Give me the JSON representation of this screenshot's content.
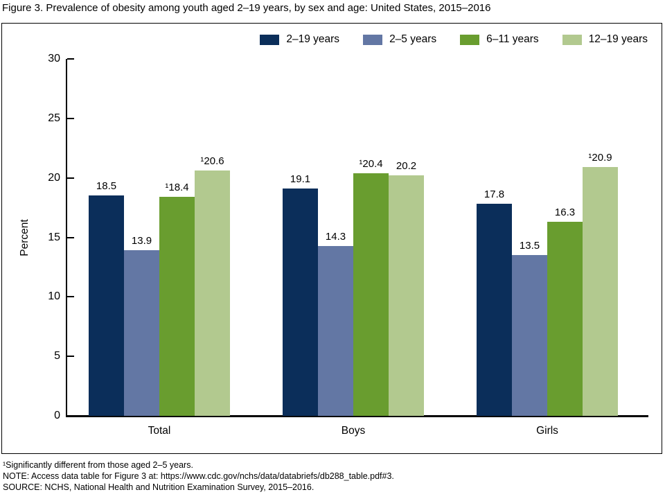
{
  "title": "Figure 3. Prevalence of obesity among youth aged 2–19 years, by sex and age: United States, 2015–2016",
  "chart_data": {
    "type": "bar",
    "title": "Prevalence of obesity among youth aged 2–19 years, by sex and age: United States, 2015–2016",
    "categories": [
      "Total",
      "Boys",
      "Girls"
    ],
    "series": [
      {
        "name": "2–19 years",
        "color": "#0b2e5a",
        "values": [
          18.5,
          19.1,
          17.8
        ],
        "value_labels": [
          "18.5",
          "19.1",
          "17.8"
        ]
      },
      {
        "name": "2–5 years",
        "color": "#6377a4",
        "values": [
          13.9,
          14.3,
          13.5
        ],
        "value_labels": [
          "13.9",
          "14.3",
          "13.5"
        ]
      },
      {
        "name": "6–11 years",
        "color": "#699d2f",
        "values": [
          18.4,
          20.4,
          16.3
        ],
        "value_labels": [
          "¹18.4",
          "¹20.4",
          "16.3"
        ]
      },
      {
        "name": "12–19 years",
        "color": "#b2c98f",
        "values": [
          20.6,
          20.2,
          20.9
        ],
        "value_labels": [
          "¹20.6",
          "20.2",
          "¹20.9"
        ]
      }
    ],
    "xlabel": "",
    "ylabel": "Percent",
    "ylim": [
      0,
      30
    ],
    "yticks": [
      0,
      5,
      10,
      15,
      20,
      25,
      30
    ],
    "grid": false,
    "legend_position": "top-right",
    "bar_color_names": [
      "dark-navy",
      "slate-blue",
      "medium-green",
      "light-green"
    ]
  },
  "footnotes": [
    "¹Significantly different from those aged 2–5 years.",
    "NOTE: Access data table for Figure 3 at: https://www.cdc.gov/nchs/data/databriefs/db288_table.pdf#3.",
    "SOURCE: NCHS, National Health and Nutrition Examination Survey, 2015–2016."
  ]
}
